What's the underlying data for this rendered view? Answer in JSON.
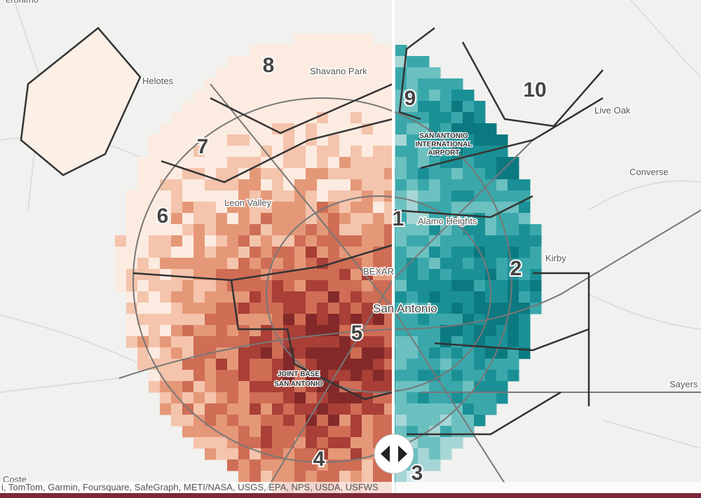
{
  "places": [
    "eronimo",
    "Helotes",
    "Shavano Park",
    "Leon Valley",
    "SAN ANTONIO",
    "INTERNATIONAL",
    "AIRPORT",
    "Alamo Heights",
    "Live Oak",
    "Converse",
    "Kirby",
    "BEXAR",
    "San Antonio",
    "JOINT BASE",
    "SAN ANTONIO",
    "Sayers",
    "Coste"
  ],
  "districts": [
    "1",
    "2",
    "3",
    "4",
    "5",
    "6",
    "7",
    "8",
    "9",
    "10"
  ],
  "attribution": "i, TomTom, Garmin, Foursquare, SafeGraph, METI/NASA, USGS, EPA, NPS, USDA, USFWS"
}
